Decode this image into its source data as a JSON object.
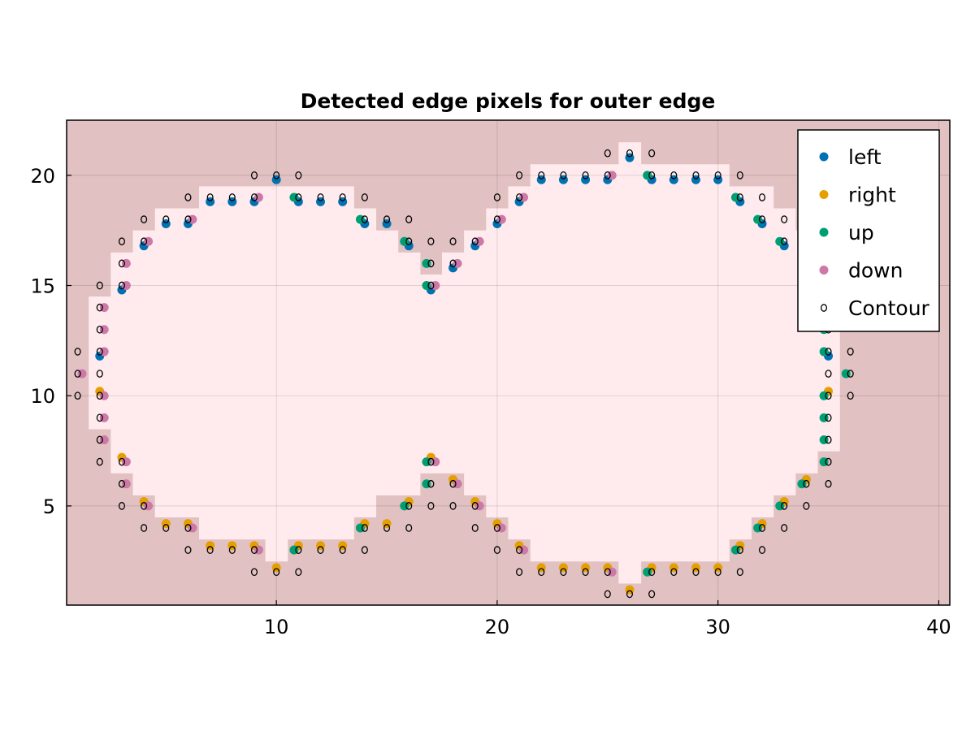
{
  "chart_data": {
    "type": "scatter",
    "title": "Detected edge pixels for outer edge",
    "xlabel": "",
    "ylabel": "",
    "xlim": [
      0.5,
      40.5
    ],
    "ylim": [
      0.5,
      22.5
    ],
    "xticks": [
      10,
      20,
      30,
      40
    ],
    "yticks": [
      5,
      10,
      15,
      20
    ],
    "grid": true,
    "legend_position": "top-right",
    "colors": {
      "background": "#e1c1c1",
      "shape_fill": "#ffebee",
      "left": "#0072b2",
      "right": "#e69f00",
      "up": "#009e73",
      "down": "#cc79a7",
      "contour": "#000000"
    },
    "legend": [
      {
        "key": "left",
        "label": "left"
      },
      {
        "key": "right",
        "label": "right"
      },
      {
        "key": "up",
        "label": "up"
      },
      {
        "key": "down",
        "label": "down"
      },
      {
        "key": "contour",
        "label": "Contour"
      }
    ],
    "shape_rows": [
      {
        "y": 2,
        "ranges": [
          [
            26,
            26
          ]
        ]
      },
      {
        "y": 3,
        "ranges": [
          [
            10,
            10
          ],
          [
            22,
            30
          ]
        ]
      },
      {
        "y": 4,
        "ranges": [
          [
            7,
            13
          ],
          [
            21,
            31
          ]
        ]
      },
      {
        "y": 5,
        "ranges": [
          [
            5,
            14
          ],
          [
            20,
            32
          ]
        ]
      },
      {
        "y": 6,
        "ranges": [
          [
            4,
            16
          ],
          [
            19,
            33
          ]
        ]
      },
      {
        "y": 7,
        "ranges": [
          [
            3,
            17
          ],
          [
            18,
            34
          ]
        ]
      },
      {
        "y": 8,
        "ranges": [
          [
            3,
            35
          ]
        ]
      },
      {
        "y": 9,
        "ranges": [
          [
            2,
            35
          ]
        ]
      },
      {
        "y": 10,
        "ranges": [
          [
            2,
            35
          ]
        ]
      },
      {
        "y": 11,
        "ranges": [
          [
            2,
            35
          ]
        ]
      },
      {
        "y": 12,
        "ranges": [
          [
            2,
            35
          ]
        ]
      },
      {
        "y": 13,
        "ranges": [
          [
            2,
            35
          ]
        ]
      },
      {
        "y": 14,
        "ranges": [
          [
            2,
            35
          ]
        ]
      },
      {
        "y": 15,
        "ranges": [
          [
            3,
            35
          ]
        ]
      },
      {
        "y": 16,
        "ranges": [
          [
            3,
            16
          ],
          [
            18,
            35
          ]
        ]
      },
      {
        "y": 17,
        "ranges": [
          [
            4,
            15
          ],
          [
            19,
            34
          ]
        ]
      },
      {
        "y": 18,
        "ranges": [
          [
            5,
            14
          ],
          [
            20,
            33
          ]
        ]
      },
      {
        "y": 19,
        "ranges": [
          [
            7,
            10
          ],
          [
            11,
            13
          ],
          [
            21,
            32
          ]
        ]
      },
      {
        "y": 20,
        "ranges": [
          [
            22,
            26
          ],
          [
            27,
            30
          ]
        ]
      },
      {
        "y": 21,
        "ranges": [
          [
            26,
            26
          ]
        ]
      }
    ],
    "series": [
      {
        "name": "left",
        "points": [
          [
            2,
            11.8
          ],
          [
            3,
            14.8
          ],
          [
            4,
            16.8
          ],
          [
            5,
            17.8
          ],
          [
            6,
            17.8
          ],
          [
            7,
            18.8
          ],
          [
            8,
            18.8
          ],
          [
            9,
            18.8
          ],
          [
            10,
            19.8
          ],
          [
            11,
            18.8
          ],
          [
            12,
            18.8
          ],
          [
            13,
            18.8
          ],
          [
            14,
            17.8
          ],
          [
            15,
            17.8
          ],
          [
            16,
            16.8
          ],
          [
            17,
            14.8
          ],
          [
            18,
            15.8
          ],
          [
            19,
            16.8
          ],
          [
            20,
            17.8
          ],
          [
            21,
            18.8
          ],
          [
            22,
            19.8
          ],
          [
            23,
            19.8
          ],
          [
            24,
            19.8
          ],
          [
            25,
            19.8
          ],
          [
            26,
            20.8
          ],
          [
            27,
            19.8
          ],
          [
            28,
            19.8
          ],
          [
            29,
            19.8
          ],
          [
            30,
            19.8
          ],
          [
            31,
            18.8
          ],
          [
            32,
            17.8
          ],
          [
            33,
            16.8
          ],
          [
            35,
            11.8
          ]
        ]
      },
      {
        "name": "right",
        "points": [
          [
            2,
            10.2
          ],
          [
            3,
            7.2
          ],
          [
            4,
            5.2
          ],
          [
            5,
            4.2
          ],
          [
            6,
            4.2
          ],
          [
            7,
            3.2
          ],
          [
            8,
            3.2
          ],
          [
            9,
            3.2
          ],
          [
            10,
            2.2
          ],
          [
            11,
            3.2
          ],
          [
            12,
            3.2
          ],
          [
            13,
            3.2
          ],
          [
            14,
            4.2
          ],
          [
            15,
            4.2
          ],
          [
            16,
            5.2
          ],
          [
            17,
            7.2
          ],
          [
            18,
            6.2
          ],
          [
            19,
            5.2
          ],
          [
            20,
            4.2
          ],
          [
            21,
            3.2
          ],
          [
            22,
            2.2
          ],
          [
            23,
            2.2
          ],
          [
            24,
            2.2
          ],
          [
            25,
            2.2
          ],
          [
            26,
            1.2
          ],
          [
            27,
            2.2
          ],
          [
            28,
            2.2
          ],
          [
            29,
            2.2
          ],
          [
            30,
            2.2
          ],
          [
            31,
            3.2
          ],
          [
            32,
            4.2
          ],
          [
            33,
            5.2
          ],
          [
            34,
            6.2
          ],
          [
            35,
            10.2
          ]
        ]
      },
      {
        "name": "up",
        "points": [
          [
            10.8,
            3
          ],
          [
            13.8,
            4
          ],
          [
            15.8,
            5
          ],
          [
            16.8,
            6
          ],
          [
            16.8,
            7
          ],
          [
            26.8,
            2
          ],
          [
            30.8,
            3
          ],
          [
            31.8,
            4
          ],
          [
            32.8,
            5
          ],
          [
            33.8,
            6
          ],
          [
            34.8,
            7
          ],
          [
            34.8,
            8
          ],
          [
            34.8,
            9
          ],
          [
            34.8,
            10
          ],
          [
            35.8,
            11
          ],
          [
            34.8,
            12
          ],
          [
            34.8,
            13
          ],
          [
            34.8,
            16
          ],
          [
            32.8,
            17
          ],
          [
            31.8,
            18
          ],
          [
            30.8,
            19
          ],
          [
            26.8,
            20
          ],
          [
            16.8,
            15
          ],
          [
            16.8,
            16
          ],
          [
            15.8,
            17
          ],
          [
            13.8,
            18
          ],
          [
            10.8,
            19
          ]
        ]
      },
      {
        "name": "down",
        "points": [
          [
            1.2,
            11
          ],
          [
            2.2,
            14
          ],
          [
            2.2,
            13
          ],
          [
            2.2,
            12
          ],
          [
            3.2,
            16
          ],
          [
            3.2,
            15
          ],
          [
            4.2,
            17
          ],
          [
            6.2,
            18
          ],
          [
            9.2,
            19
          ],
          [
            2.2,
            10
          ],
          [
            2.2,
            9
          ],
          [
            2.2,
            8
          ],
          [
            3.2,
            7
          ],
          [
            3.2,
            6
          ],
          [
            4.2,
            5
          ],
          [
            6.2,
            4
          ],
          [
            9.2,
            3
          ],
          [
            17.2,
            7
          ],
          [
            18.2,
            6
          ],
          [
            19.2,
            5
          ],
          [
            20.2,
            4
          ],
          [
            21.2,
            3
          ],
          [
            25.2,
            2
          ],
          [
            17.2,
            15
          ],
          [
            18.2,
            16
          ],
          [
            19.2,
            17
          ],
          [
            20.2,
            18
          ],
          [
            21.2,
            19
          ],
          [
            25.2,
            20
          ]
        ]
      },
      {
        "name": "Contour",
        "points": [
          [
            1,
            12
          ],
          [
            1,
            11
          ],
          [
            1,
            10
          ],
          [
            2,
            15
          ],
          [
            2,
            14
          ],
          [
            2,
            13
          ],
          [
            2,
            12
          ],
          [
            2,
            11
          ],
          [
            2,
            10
          ],
          [
            2,
            9
          ],
          [
            2,
            8
          ],
          [
            2,
            7
          ],
          [
            3,
            17
          ],
          [
            3,
            16
          ],
          [
            3,
            15
          ],
          [
            3,
            7
          ],
          [
            3,
            6
          ],
          [
            3,
            5
          ],
          [
            4,
            18
          ],
          [
            4,
            17
          ],
          [
            4,
            5
          ],
          [
            4,
            4
          ],
          [
            5,
            18
          ],
          [
            5,
            4
          ],
          [
            6,
            19
          ],
          [
            6,
            18
          ],
          [
            6,
            4
          ],
          [
            6,
            3
          ],
          [
            7,
            19
          ],
          [
            7,
            3
          ],
          [
            8,
            19
          ],
          [
            8,
            3
          ],
          [
            9,
            20
          ],
          [
            9,
            19
          ],
          [
            9,
            3
          ],
          [
            9,
            2
          ],
          [
            10,
            20
          ],
          [
            10,
            2
          ],
          [
            11,
            20
          ],
          [
            11,
            19
          ],
          [
            11,
            3
          ],
          [
            11,
            2
          ],
          [
            12,
            19
          ],
          [
            12,
            3
          ],
          [
            13,
            19
          ],
          [
            13,
            3
          ],
          [
            14,
            19
          ],
          [
            14,
            18
          ],
          [
            14,
            4
          ],
          [
            14,
            3
          ],
          [
            15,
            18
          ],
          [
            15,
            4
          ],
          [
            16,
            18
          ],
          [
            16,
            17
          ],
          [
            16,
            5
          ],
          [
            16,
            4
          ],
          [
            17,
            17
          ],
          [
            17,
            16
          ],
          [
            17,
            15
          ],
          [
            17,
            7
          ],
          [
            17,
            6
          ],
          [
            17,
            5
          ],
          [
            18,
            17
          ],
          [
            18,
            16
          ],
          [
            18,
            6
          ],
          [
            18,
            5
          ],
          [
            19,
            17
          ],
          [
            19,
            5
          ],
          [
            19,
            4
          ],
          [
            20,
            19
          ],
          [
            20,
            18
          ],
          [
            20,
            4
          ],
          [
            20,
            3
          ],
          [
            21,
            20
          ],
          [
            21,
            19
          ],
          [
            21,
            3
          ],
          [
            21,
            2
          ],
          [
            22,
            20
          ],
          [
            22,
            2
          ],
          [
            23,
            20
          ],
          [
            23,
            2
          ],
          [
            24,
            20
          ],
          [
            24,
            2
          ],
          [
            25,
            21
          ],
          [
            25,
            20
          ],
          [
            25,
            2
          ],
          [
            25,
            1
          ],
          [
            26,
            21
          ],
          [
            26,
            1
          ],
          [
            27,
            21
          ],
          [
            27,
            20
          ],
          [
            27,
            2
          ],
          [
            27,
            1
          ],
          [
            28,
            20
          ],
          [
            28,
            2
          ],
          [
            29,
            20
          ],
          [
            29,
            2
          ],
          [
            30,
            20
          ],
          [
            30,
            2
          ],
          [
            31,
            20
          ],
          [
            31,
            19
          ],
          [
            31,
            3
          ],
          [
            31,
            2
          ],
          [
            32,
            19
          ],
          [
            32,
            18
          ],
          [
            32,
            4
          ],
          [
            32,
            3
          ],
          [
            33,
            18
          ],
          [
            33,
            17
          ],
          [
            33,
            5
          ],
          [
            33,
            4
          ],
          [
            34,
            17
          ],
          [
            34,
            16
          ],
          [
            34,
            6
          ],
          [
            34,
            5
          ],
          [
            35,
            16
          ],
          [
            35,
            13
          ],
          [
            35,
            12
          ],
          [
            35,
            11
          ],
          [
            35,
            10
          ],
          [
            35,
            9
          ],
          [
            35,
            8
          ],
          [
            35,
            7
          ],
          [
            35,
            6
          ],
          [
            36,
            12
          ],
          [
            36,
            11
          ],
          [
            36,
            10
          ]
        ]
      }
    ]
  }
}
